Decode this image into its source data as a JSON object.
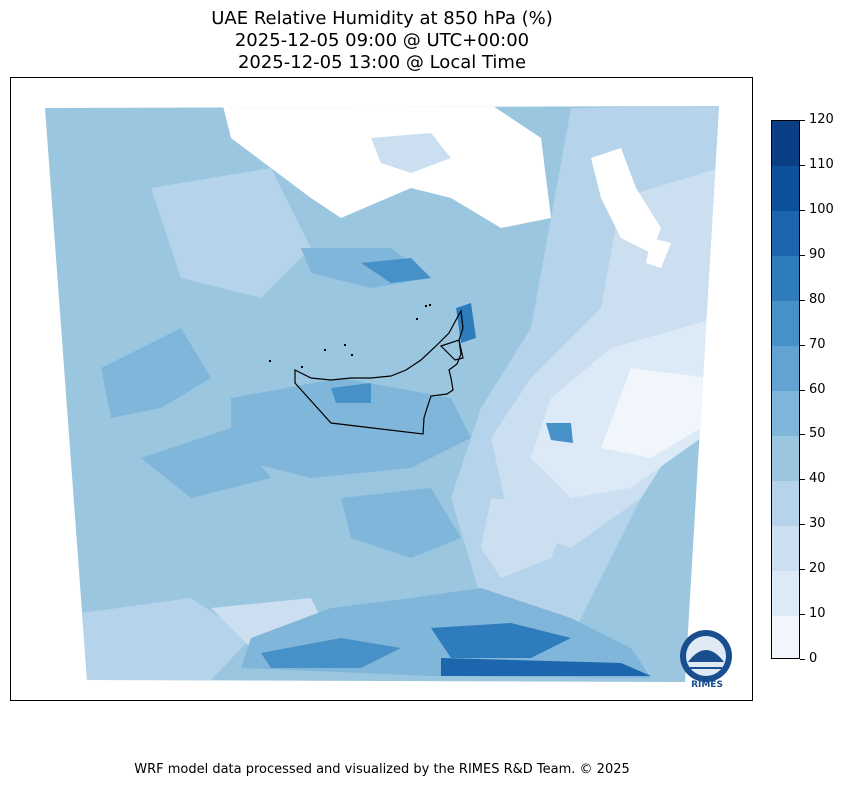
{
  "header": {
    "title_line1": "UAE Relative Humidity at 850 hPa (%)",
    "title_line2": "2025-12-05 09:00 @ UTC+00:00",
    "title_line3": "2025-12-05 13:00 @ Local Time"
  },
  "colorbar": {
    "levels": [
      0,
      10,
      20,
      30,
      40,
      50,
      60,
      70,
      80,
      90,
      100,
      110,
      120
    ],
    "colors": [
      "#f0f6fc",
      "#dce9f6",
      "#cbdff0",
      "#b5d3ea",
      "#9bc6e0",
      "#80b6d9",
      "#62a3d1",
      "#4691c8",
      "#2f7cbc",
      "#1c66ae",
      "#0c519b",
      "#0a3f85"
    ],
    "labels": [
      "0",
      "10",
      "20",
      "30",
      "40",
      "50",
      "60",
      "70",
      "80",
      "90",
      "100",
      "110",
      "120"
    ]
  },
  "logo": {
    "text": "RIMES"
  },
  "footer": {
    "credit": "WRF model data processed and visualized by the RIMES R&D Team. © 2025"
  }
}
